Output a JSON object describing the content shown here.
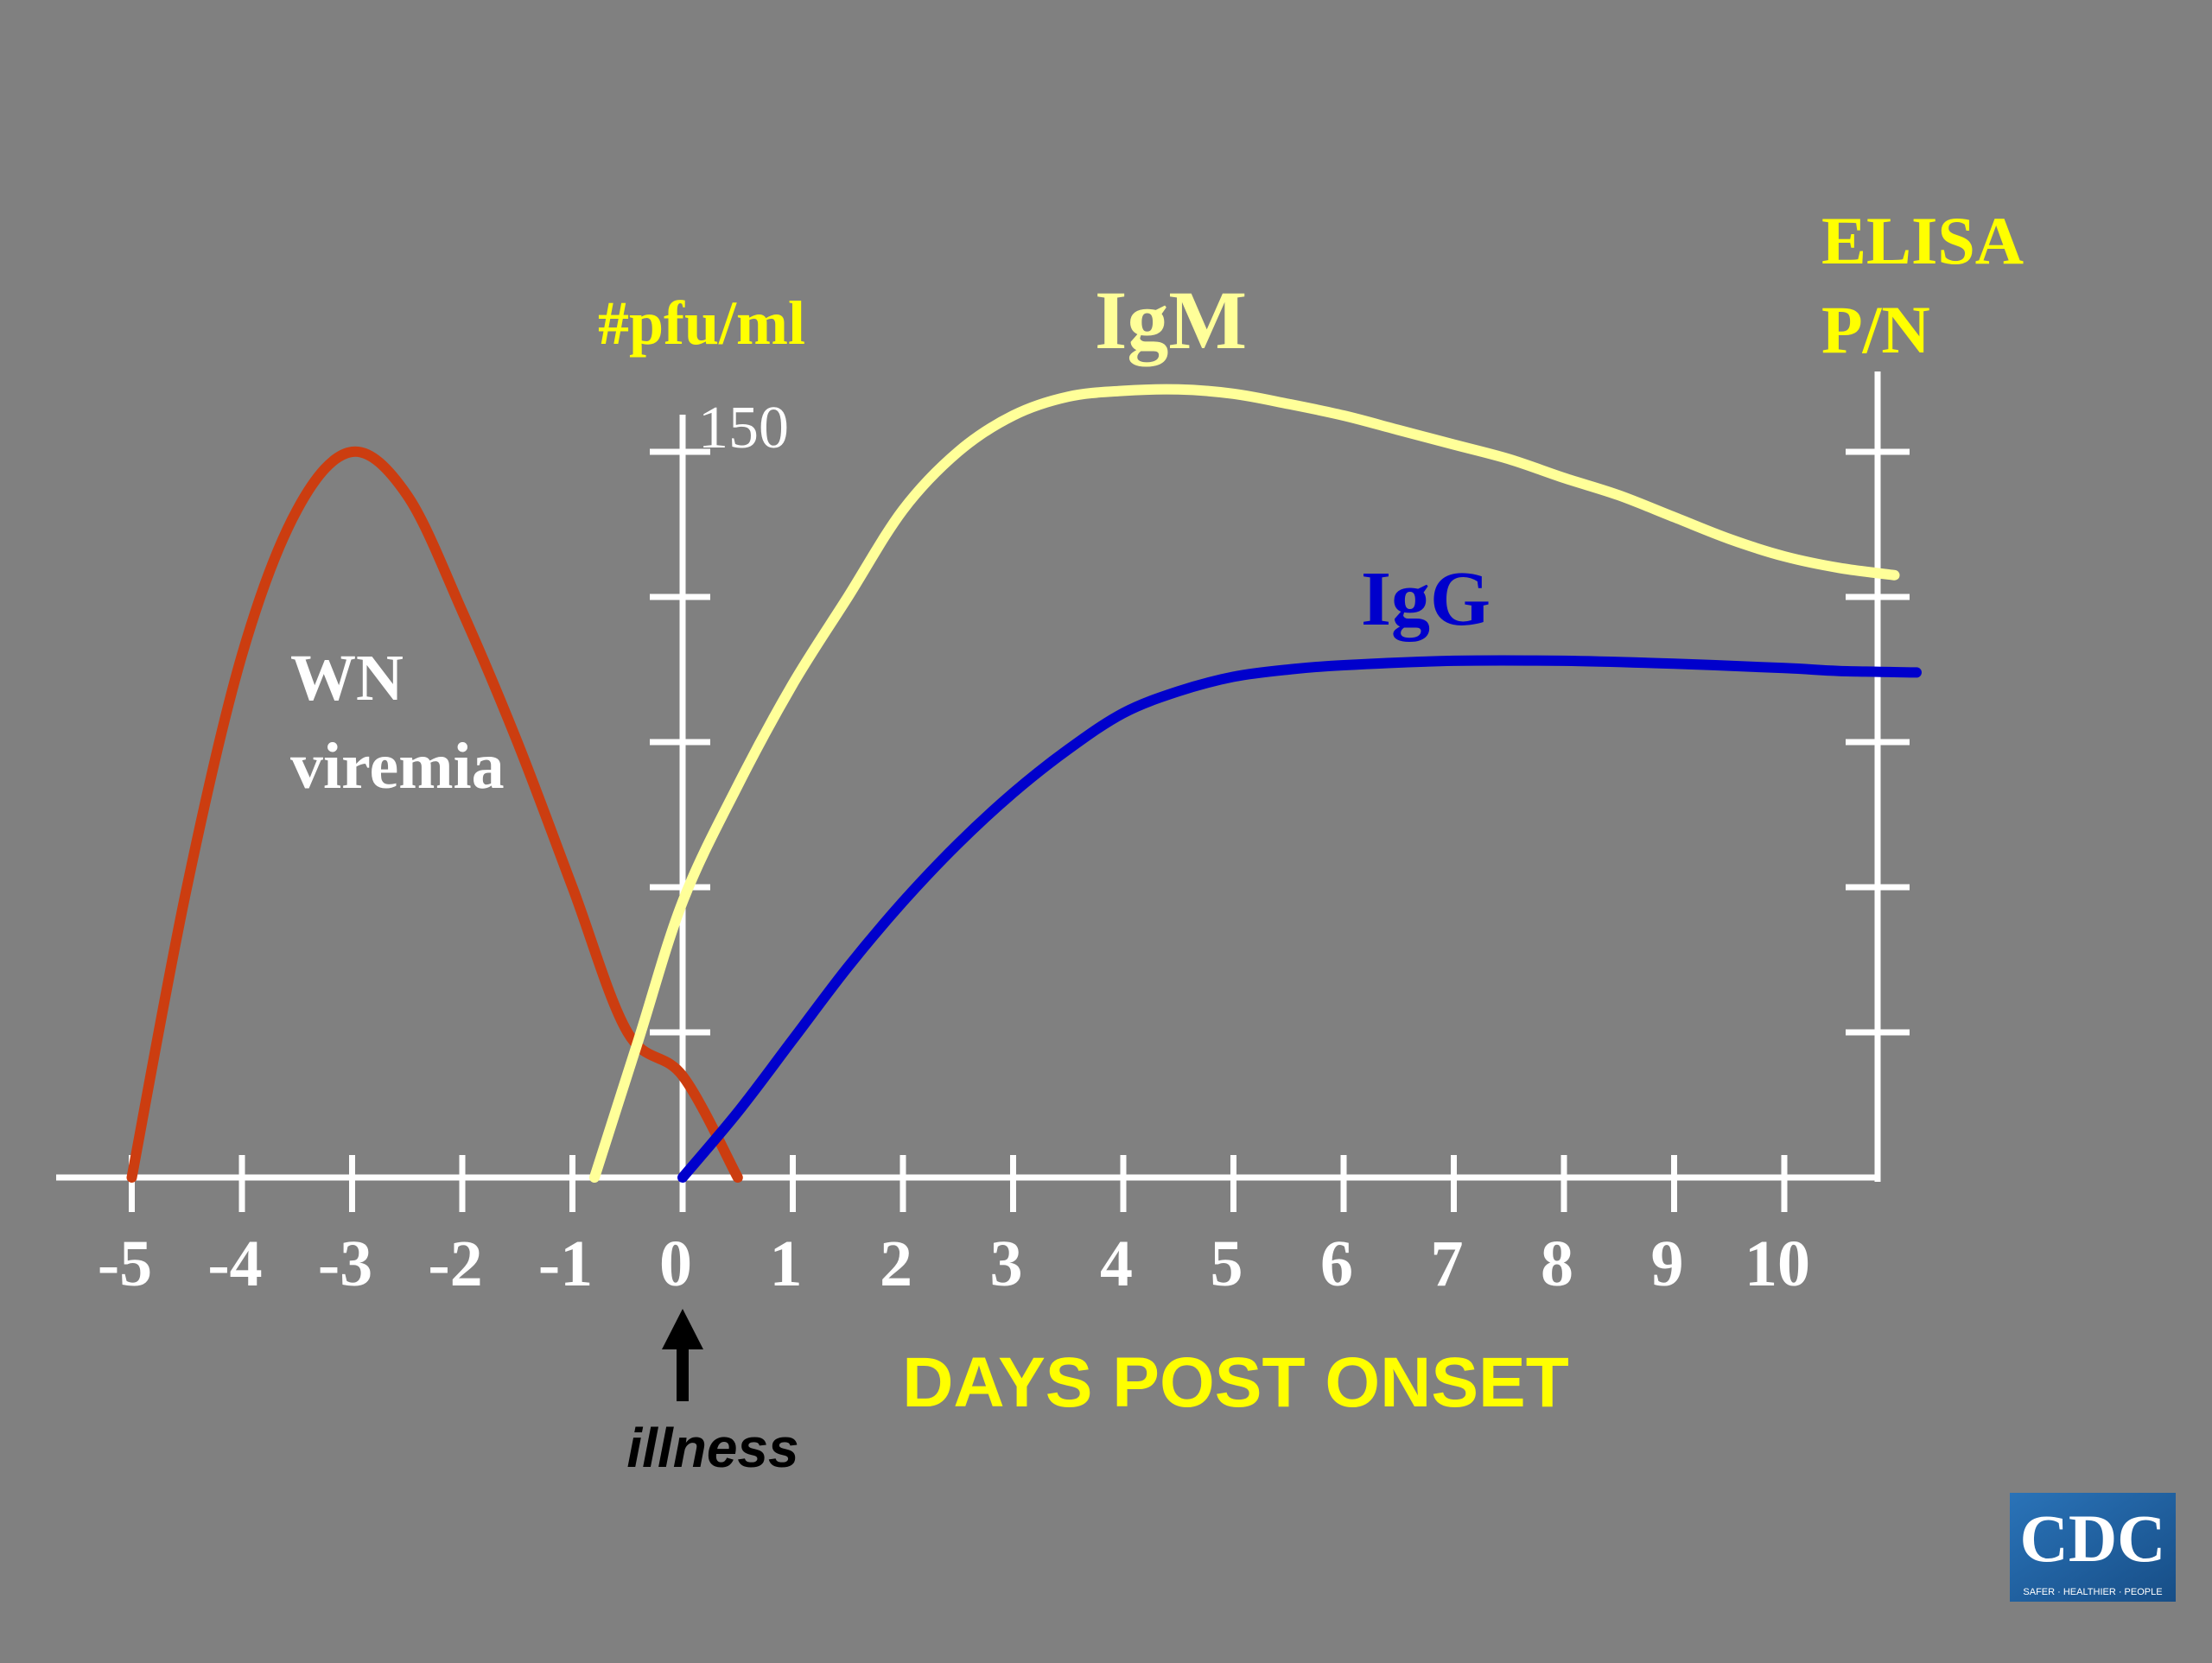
{
  "chart_data": {
    "type": "line",
    "xlabel": "DAYS POST ONSET",
    "left_axis_label": "#pfu/ml",
    "left_axis_max_label": "150",
    "right_axis_label_line1": "ELISA",
    "right_axis_label_line2": "P/N",
    "x_ticks": [
      -5,
      -4,
      -3,
      -2,
      -1,
      0,
      1,
      2,
      3,
      4,
      5,
      6,
      7,
      8,
      9,
      10
    ],
    "x_tick_labels": [
      "-5",
      "-4",
      "-3",
      "-2",
      "-1",
      "0",
      "1",
      "2",
      "3",
      "4",
      "5",
      "6",
      "7",
      "8",
      "9",
      "10"
    ],
    "xlim": [
      -5.2,
      11.3
    ],
    "ylim": [
      0,
      5.3
    ],
    "grid": false,
    "series": [
      {
        "name": "WN viremia",
        "label_line1": "WN",
        "label_line2": "viremia",
        "color": "#cc3d10",
        "x": [
          -5.0,
          -4.5,
          -4.0,
          -3.5,
          -3.0,
          -2.5,
          -2.0,
          -1.5,
          -1.0,
          -0.5,
          0.0,
          0.5
        ],
        "y": [
          0.0,
          2.0,
          3.6,
          4.6,
          5.0,
          4.7,
          3.9,
          3.0,
          2.0,
          1.0,
          0.7,
          0.0
        ]
      },
      {
        "name": "IgM",
        "color": "#ffff99",
        "x": [
          -0.8,
          -0.4,
          0.0,
          0.5,
          1.0,
          1.5,
          2.0,
          2.5,
          3.0,
          3.5,
          4.0,
          4.5,
          5.0,
          5.5,
          6.0,
          6.5,
          7.0,
          7.5,
          8.0,
          8.5,
          9.0,
          9.5,
          10.0,
          10.5,
          11.0
        ],
        "y": [
          0.0,
          0.95,
          1.9,
          2.7,
          3.4,
          4.0,
          4.6,
          5.0,
          5.25,
          5.38,
          5.42,
          5.43,
          5.4,
          5.33,
          5.25,
          5.15,
          5.05,
          4.95,
          4.82,
          4.7,
          4.55,
          4.4,
          4.28,
          4.2,
          4.15
        ]
      },
      {
        "name": "IgG",
        "color": "#0000cc",
        "x": [
          0.0,
          0.5,
          1.0,
          1.5,
          2.0,
          2.5,
          3.0,
          3.5,
          4.0,
          4.5,
          5.0,
          5.5,
          6.0,
          7.0,
          8.0,
          9.0,
          10.0,
          10.5,
          11.2
        ],
        "y": [
          0.0,
          0.45,
          0.95,
          1.45,
          1.9,
          2.3,
          2.65,
          2.95,
          3.2,
          3.35,
          3.45,
          3.5,
          3.53,
          3.56,
          3.56,
          3.54,
          3.51,
          3.49,
          3.48
        ]
      }
    ]
  },
  "annotations": {
    "onset_label": "illness"
  },
  "logo": {
    "text": "CDC",
    "tagline": "SAFER · HEALTHIER · PEOPLE",
    "color": "#1d5f9e"
  }
}
